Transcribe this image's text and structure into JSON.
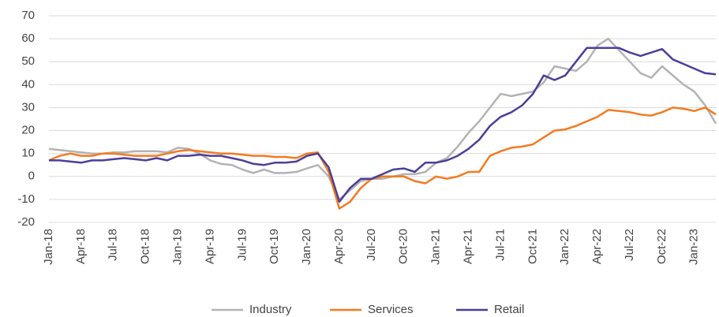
{
  "chart_data": {
    "type": "line",
    "categories": [
      "Jan-18",
      null,
      null,
      "Apr-18",
      null,
      null,
      "Jul-18",
      null,
      null,
      "Oct-18",
      null,
      null,
      "Jan-19",
      null,
      null,
      "Apr-19",
      null,
      null,
      "Jul-19",
      null,
      null,
      "Oct-19",
      null,
      null,
      "Jan-20",
      null,
      null,
      "Apr-20",
      null,
      null,
      "Jul-20",
      null,
      null,
      "Oct-20",
      null,
      null,
      "Jan-21",
      null,
      null,
      "Apr-21",
      null,
      null,
      "Jul-21",
      null,
      null,
      "Oct-21",
      null,
      null,
      "Jan-22",
      null,
      null,
      "Apr-22",
      null,
      null,
      "Jul-22",
      null,
      null,
      "Oct-22",
      null,
      null,
      "Jan-23",
      null,
      null
    ],
    "series": [
      {
        "name": "Industry",
        "color": "#b3b3b3",
        "values": [
          12,
          11.5,
          11,
          10.5,
          10,
          10,
          10.5,
          10.5,
          11,
          11,
          11,
          10.5,
          12.5,
          12,
          10,
          7,
          5.5,
          5,
          3,
          1.5,
          3,
          1.5,
          1.5,
          2,
          3.5,
          5,
          0,
          -10,
          -6,
          -2,
          -1,
          -1,
          0,
          1,
          1,
          2,
          6,
          8,
          13,
          19,
          24,
          30,
          36,
          35,
          36,
          37,
          41,
          48,
          47,
          46,
          50,
          57,
          60,
          55,
          50,
          45,
          43,
          48,
          44,
          40,
          37,
          31,
          23
        ]
      },
      {
        "name": "Services",
        "color": "#f47a20",
        "values": [
          7,
          9,
          10,
          9,
          9,
          10,
          10,
          9.5,
          9,
          9,
          9,
          10,
          11,
          11.5,
          11,
          10.5,
          10,
          10,
          9.5,
          9,
          9,
          8.5,
          8.5,
          8,
          10,
          10.5,
          2,
          -14,
          -11,
          -5,
          -1,
          0,
          0,
          0,
          -2,
          -3,
          0,
          -1,
          0,
          2,
          2,
          9,
          11,
          12.5,
          13,
          14,
          17,
          20,
          20.5,
          22,
          24,
          26,
          29,
          28.5,
          28,
          27,
          26.5,
          28,
          30,
          29.5,
          28.5,
          30,
          27
        ]
      },
      {
        "name": "Retail",
        "color": "#4b3f99",
        "values": [
          7,
          7,
          6.5,
          6,
          7,
          7,
          7.5,
          8,
          7.5,
          7,
          8,
          7,
          9,
          9,
          9.5,
          9,
          9,
          8,
          7,
          5.5,
          5,
          6,
          6,
          6.5,
          9,
          10,
          4,
          -11,
          -5,
          -1,
          -1,
          1,
          3,
          3.5,
          2,
          6,
          6,
          7,
          9,
          12,
          16,
          22,
          26,
          28,
          31,
          36,
          44,
          42,
          44,
          50,
          56,
          56,
          56,
          56,
          54,
          52.5,
          54,
          55.5,
          51,
          49,
          47,
          45,
          44.5
        ]
      }
    ],
    "ylim": [
      -20,
      70
    ],
    "yticks": [
      -20,
      -10,
      0,
      10,
      20,
      30,
      40,
      50,
      60,
      70
    ],
    "grid": true,
    "legend": "bottom"
  }
}
